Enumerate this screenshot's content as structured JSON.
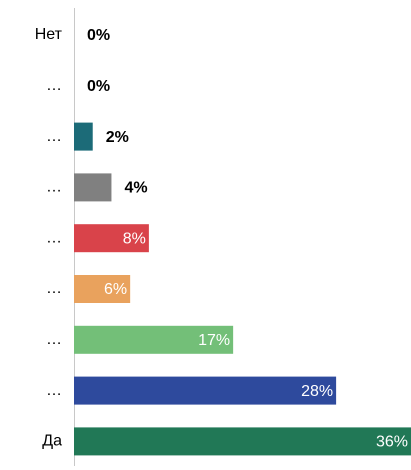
{
  "chart_data": {
    "type": "bar",
    "orientation": "horizontal",
    "categories": [
      "Нет",
      "…",
      "…",
      "…",
      "…",
      "…",
      "…",
      "…",
      "Да"
    ],
    "values": [
      0,
      0,
      2,
      4,
      8,
      6,
      17,
      28,
      36
    ],
    "value_labels": [
      "0%",
      "0%",
      "2%",
      "4%",
      "8%",
      "6%",
      "17%",
      "28%",
      "36%"
    ],
    "colors": [
      null,
      null,
      "#1c6b78",
      "#808080",
      "#d9434a",
      "#e9a25d",
      "#73bf78",
      "#2e4a9d",
      "#217856"
    ]
  }
}
